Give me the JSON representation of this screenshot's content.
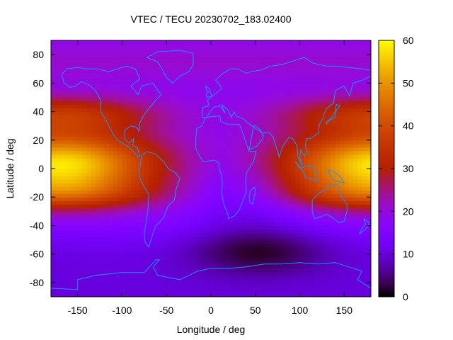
{
  "chart_data": {
    "type": "heatmap",
    "title": "VTEC / TECU 20230702_183.02400",
    "xlabel": "Longitude / deg",
    "ylabel": "Latitude / deg",
    "xlim": [
      -180,
      180
    ],
    "ylim": [
      -90,
      90
    ],
    "x_ticks": [
      -150,
      -100,
      -50,
      0,
      50,
      100,
      150
    ],
    "y_ticks": [
      -80,
      -60,
      -40,
      -20,
      0,
      20,
      40,
      60,
      80
    ],
    "colorbar": {
      "range": [
        0,
        60
      ],
      "ticks": [
        0,
        10,
        20,
        30,
        40,
        50,
        60
      ],
      "colormap": "gnuplot (black-purple-red-yellow)"
    },
    "grid": false,
    "features": {
      "dayside_peak": {
        "lon": -165,
        "lat": 3,
        "value": 58
      },
      "dayside_peak_wrap": {
        "lon": 190,
        "lat": 3,
        "value": 58
      },
      "midlat_band_north": {
        "lat": 38,
        "value": 40
      },
      "midlat_band_south": {
        "lat": -18,
        "value": 38
      },
      "night_minimum_south": {
        "lon": 55,
        "lat": -58,
        "value": 4
      },
      "background_north": 18,
      "background_south_polar": 8
    },
    "overlay": {
      "coastlines": true,
      "coastline_color": "#1e90ff"
    }
  }
}
